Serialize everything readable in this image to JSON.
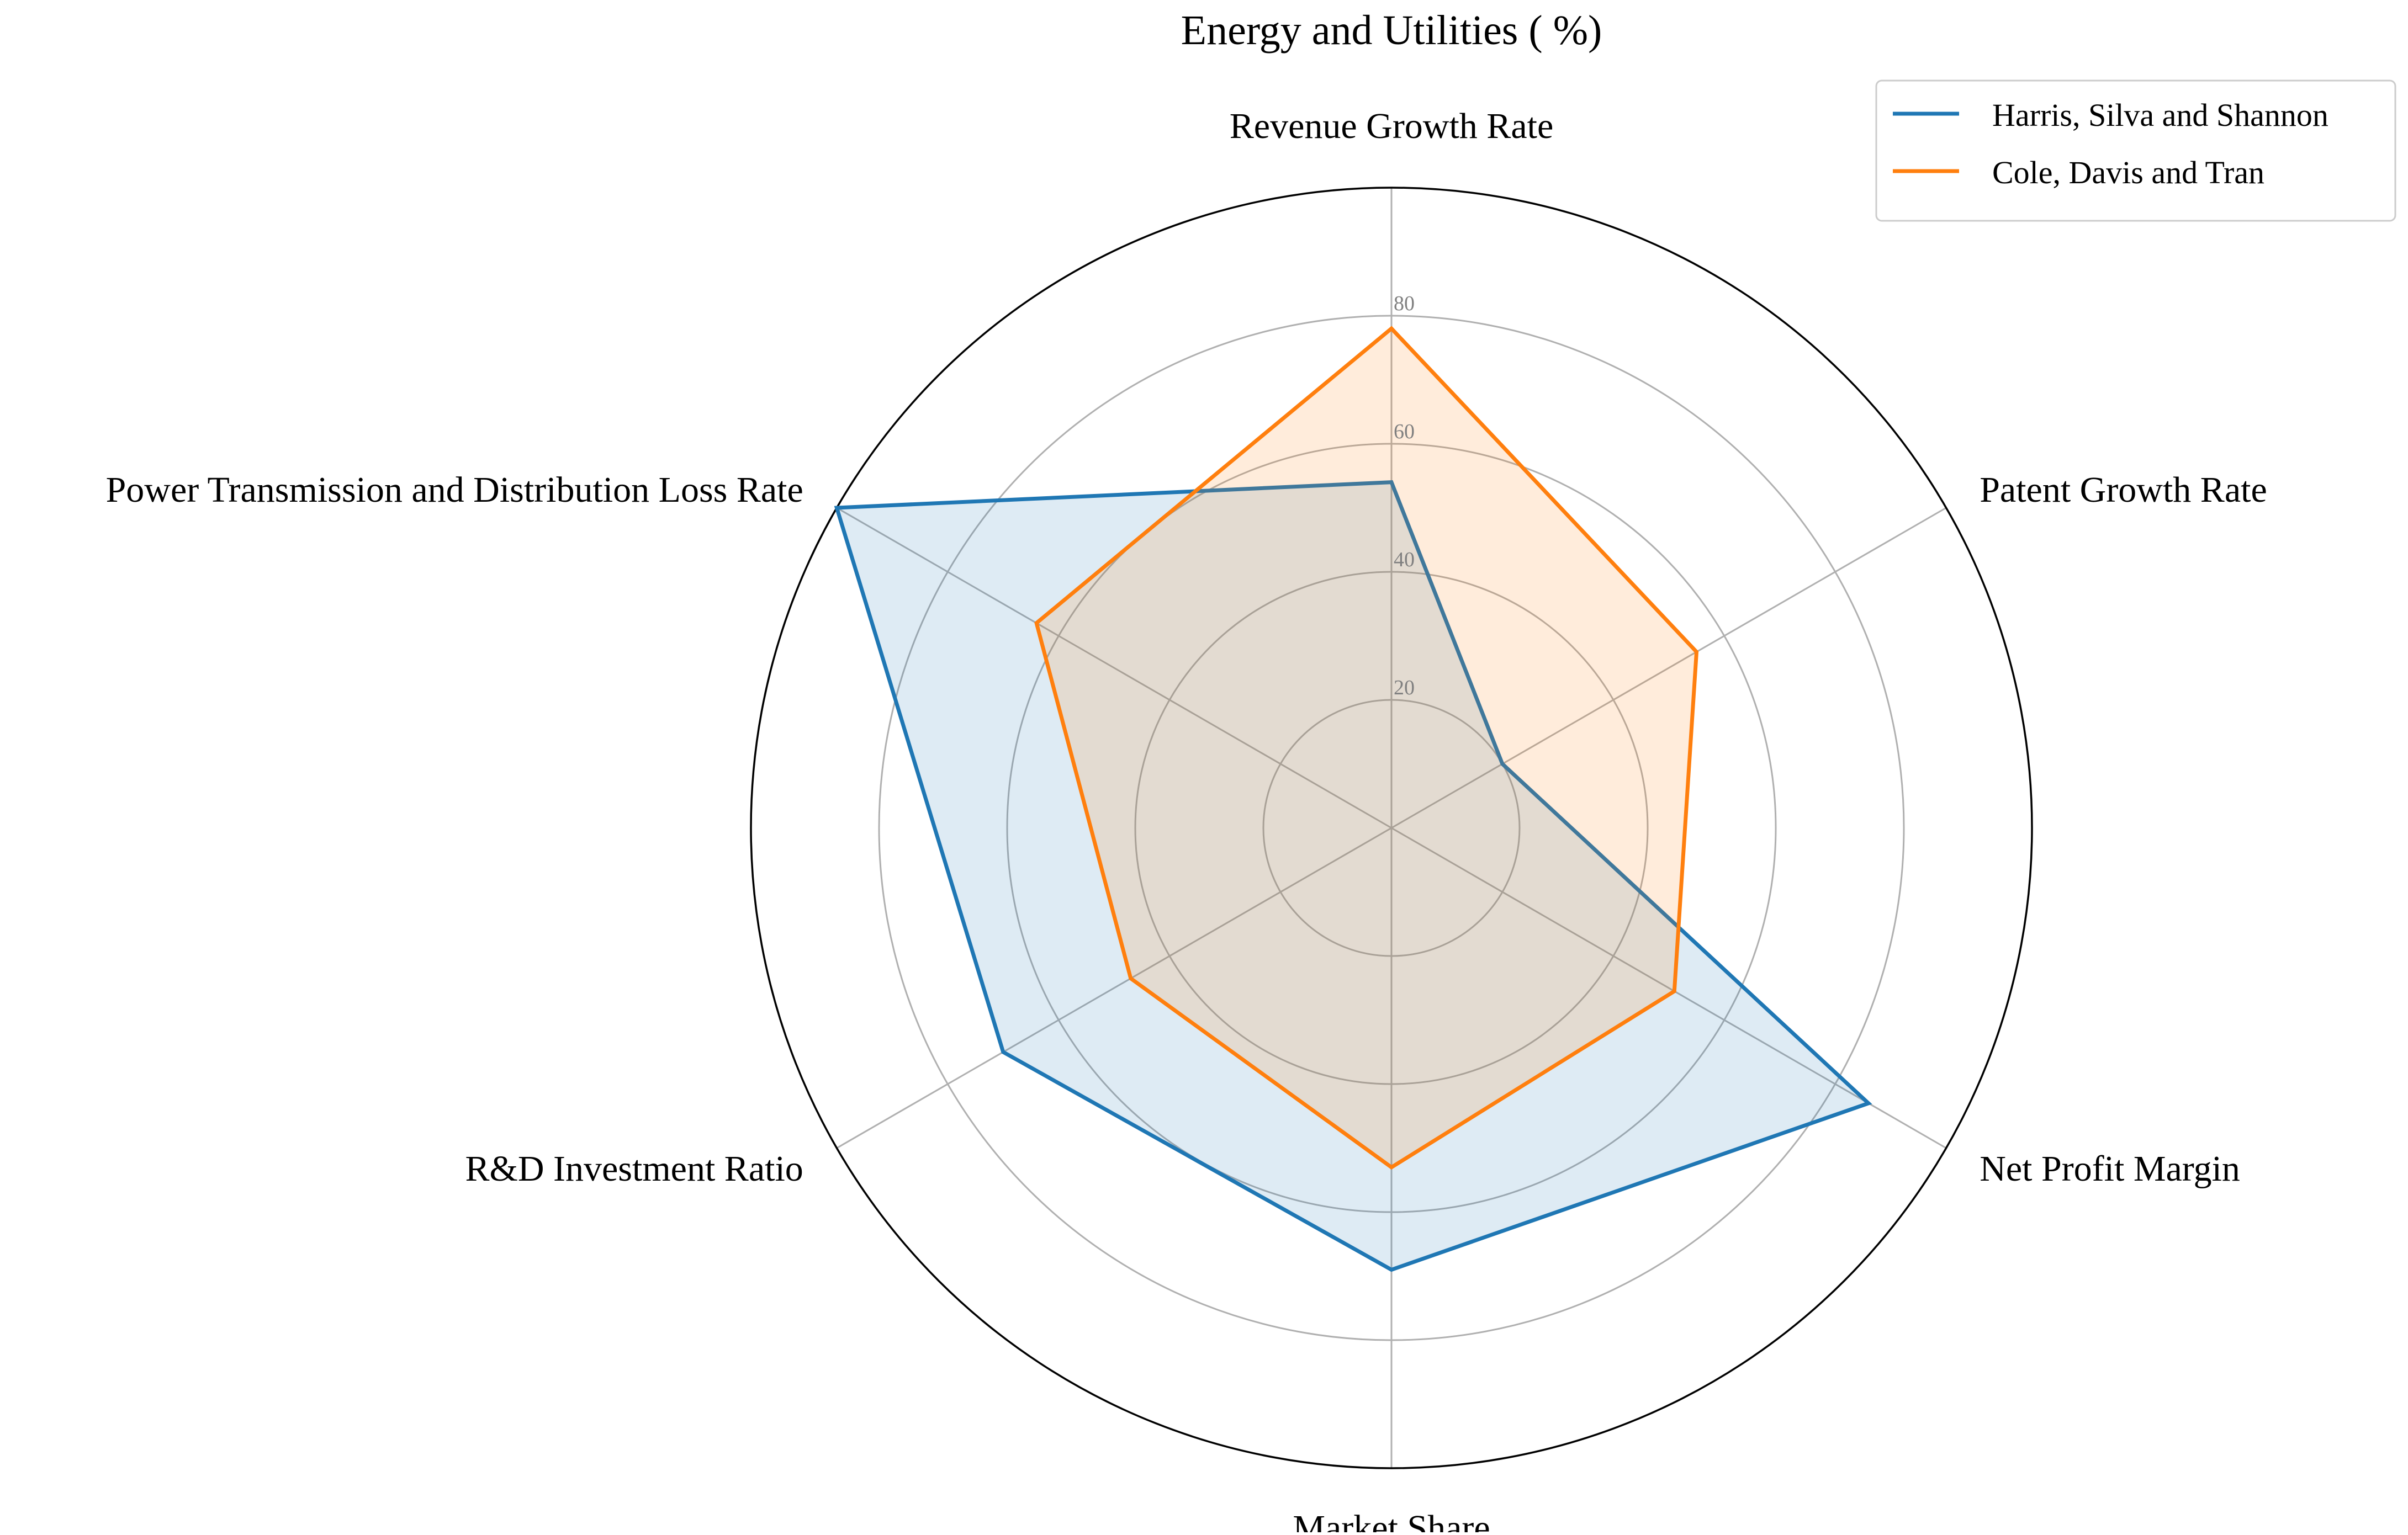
{
  "chart_data": {
    "type": "radar",
    "title": "Energy and Utilities ( %)",
    "axes": [
      "Revenue Growth Rate",
      "Patent Growth Rate",
      "Net Profit Margin",
      "Market Share",
      "R&D Investment Ratio",
      "Power Transmission and Distribution Loss Rate"
    ],
    "radial_ticks": [
      20,
      40,
      60,
      80
    ],
    "rlim": [
      0,
      100
    ],
    "grid": true,
    "legend_position": "top-right",
    "series": [
      {
        "name": "Harris, Silva and Shannon",
        "color": "#1f77b4",
        "values": [
          54,
          20,
          86,
          69,
          70,
          100
        ]
      },
      {
        "name": "Cole, Davis and Tran",
        "color": "#ff7f0e",
        "values": [
          78,
          55,
          51,
          53,
          47,
          64
        ]
      }
    ]
  }
}
